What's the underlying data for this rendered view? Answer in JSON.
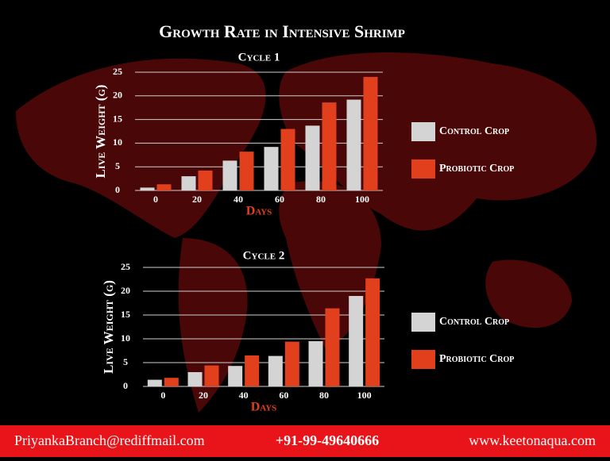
{
  "title": "Growth Rate in Intensive Shrimp",
  "chart_data": [
    {
      "type": "bar",
      "title": "Cycle 1",
      "x_label": "Days",
      "y_label": "Live Weight (g)",
      "categories": [
        "0",
        "20",
        "40",
        "60",
        "80",
        "100"
      ],
      "series": [
        {
          "name": "Control Crop",
          "color": "#d4d4d4",
          "values": [
            0.6,
            3.0,
            6.3,
            9.2,
            13.7,
            19.2
          ]
        },
        {
          "name": "Probiotic Crop",
          "color": "#e2401c",
          "values": [
            1.3,
            4.2,
            8.2,
            13.0,
            18.6,
            24.0
          ]
        }
      ],
      "ylim": [
        0,
        25
      ],
      "yticks": [
        0,
        5,
        10,
        15,
        20,
        25
      ],
      "grid": true
    },
    {
      "type": "bar",
      "title": "Cycle 2",
      "x_label": "Days",
      "y_label": "Live Weight (g)",
      "categories": [
        "0",
        "20",
        "40",
        "60",
        "80",
        "100"
      ],
      "series": [
        {
          "name": "Control Crop",
          "color": "#d4d4d4",
          "values": [
            1.4,
            3.0,
            4.3,
            6.4,
            9.5,
            19.0
          ]
        },
        {
          "name": "Probiotic Crop",
          "color": "#e2401c",
          "values": [
            1.8,
            4.4,
            6.5,
            9.4,
            16.4,
            22.7
          ]
        }
      ],
      "ylim": [
        0,
        25
      ],
      "yticks": [
        0,
        5,
        10,
        15,
        20,
        25
      ],
      "grid": true
    }
  ],
  "footer": [
    "PriyankaBranch@rediffmail.com",
    "+91-99-49640666",
    "www.keetonaqua.com"
  ]
}
